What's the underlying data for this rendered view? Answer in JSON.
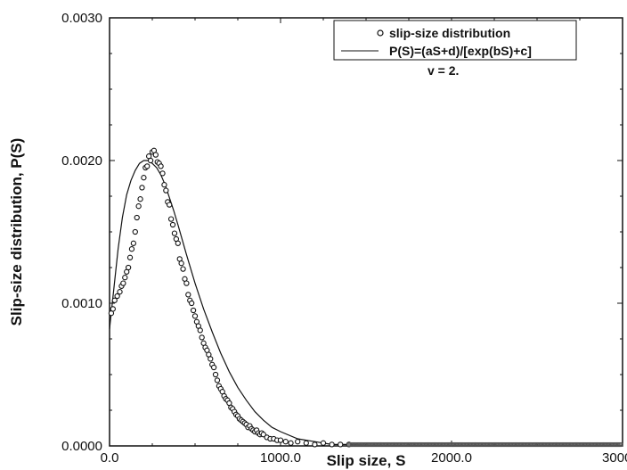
{
  "chart_data": {
    "type": "scatter",
    "title": "",
    "xlabel": "Slip size, S",
    "ylabel": "Slip-size distribution, P(S)",
    "xlim": [
      0,
      3000
    ],
    "ylim": [
      0,
      0.003
    ],
    "x_ticks": [
      0,
      1000,
      2000,
      3000
    ],
    "x_tick_labels": [
      "0.0",
      "1000.0",
      "2000.0",
      "3000.0"
    ],
    "y_ticks": [
      0,
      0.001,
      0.002,
      0.003
    ],
    "y_tick_labels": [
      "0.0000",
      "0.0010",
      "0.0020",
      "0.0030"
    ],
    "grid": false,
    "legend_position": "top-right",
    "annotation": "v = 2.",
    "series": [
      {
        "name": "slip-size distribution",
        "style": "open-circle-markers",
        "x": [
          10,
          20,
          30,
          45,
          60,
          70,
          80,
          90,
          100,
          110,
          120,
          130,
          140,
          150,
          160,
          170,
          180,
          190,
          200,
          210,
          220,
          230,
          240,
          250,
          260,
          270,
          280,
          290,
          300,
          310,
          320,
          330,
          340,
          350,
          360,
          370,
          380,
          390,
          400,
          410,
          420,
          430,
          440,
          450,
          460,
          470,
          480,
          490,
          500,
          510,
          520,
          530,
          540,
          550,
          560,
          570,
          580,
          590,
          600,
          610,
          620,
          630,
          640,
          650,
          660,
          670,
          680,
          690,
          700,
          710,
          720,
          730,
          740,
          750,
          760,
          770,
          780,
          790,
          800,
          810,
          820,
          830,
          840,
          850,
          860,
          870,
          880,
          890,
          900,
          920,
          940,
          960,
          980,
          1000,
          1030,
          1060,
          1100,
          1150,
          1200,
          1250,
          1300,
          1350,
          1400
        ],
        "y": [
          0.00093,
          0.00096,
          0.00102,
          0.00105,
          0.00108,
          0.00112,
          0.00114,
          0.00118,
          0.00122,
          0.00125,
          0.00132,
          0.00138,
          0.00142,
          0.0015,
          0.0016,
          0.00168,
          0.00173,
          0.00181,
          0.00188,
          0.00195,
          0.00196,
          0.00203,
          0.002,
          0.00206,
          0.00207,
          0.00204,
          0.00199,
          0.00198,
          0.00196,
          0.00191,
          0.00183,
          0.00179,
          0.00171,
          0.00169,
          0.00159,
          0.00155,
          0.00149,
          0.00145,
          0.00142,
          0.00131,
          0.00128,
          0.00124,
          0.00117,
          0.00114,
          0.00106,
          0.00102,
          0.001,
          0.00095,
          0.00091,
          0.00087,
          0.00084,
          0.00081,
          0.00076,
          0.00072,
          0.00069,
          0.00067,
          0.00064,
          0.00061,
          0.00057,
          0.00055,
          0.0005,
          0.00046,
          0.00042,
          0.0004,
          0.00038,
          0.00035,
          0.00033,
          0.00032,
          0.0003,
          0.00027,
          0.00026,
          0.00024,
          0.00022,
          0.00021,
          0.00019,
          0.00018,
          0.00017,
          0.00016,
          0.00015,
          0.00013,
          0.00014,
          0.00012,
          0.00011,
          0.0001,
          0.00011,
          9e-05,
          8e-05,
          9e-05,
          8e-05,
          6e-05,
          5e-05,
          5e-05,
          4e-05,
          4e-05,
          3e-05,
          2e-05,
          3e-05,
          2e-05,
          1e-05,
          2e-05,
          1e-05,
          1e-05,
          1e-05
        ]
      },
      {
        "name": "P(S)=(aS+d)/[exp(bS)+c]",
        "style": "solid-line",
        "x": [
          0,
          25,
          50,
          75,
          100,
          125,
          150,
          175,
          200,
          225,
          250,
          275,
          300,
          325,
          350,
          375,
          400,
          450,
          500,
          550,
          600,
          650,
          700,
          750,
          800,
          850,
          900,
          950,
          1000,
          1100,
          1200,
          1300,
          1400,
          1500,
          1700,
          2000,
          2500,
          3000
        ],
        "y": [
          0.00082,
          0.0011,
          0.00138,
          0.0016,
          0.00176,
          0.00186,
          0.00193,
          0.00198,
          0.002,
          0.002,
          0.00198,
          0.00195,
          0.0019,
          0.00183,
          0.00174,
          0.00165,
          0.00155,
          0.00134,
          0.00114,
          0.00096,
          0.0008,
          0.00065,
          0.00052,
          0.00041,
          0.00032,
          0.00024,
          0.00018,
          0.00013,
          0.0001,
          5e-05,
          3e-05,
          1e-05,
          1e-05,
          5e-06,
          2e-06,
          0.0,
          0.0,
          0.0
        ]
      }
    ]
  }
}
